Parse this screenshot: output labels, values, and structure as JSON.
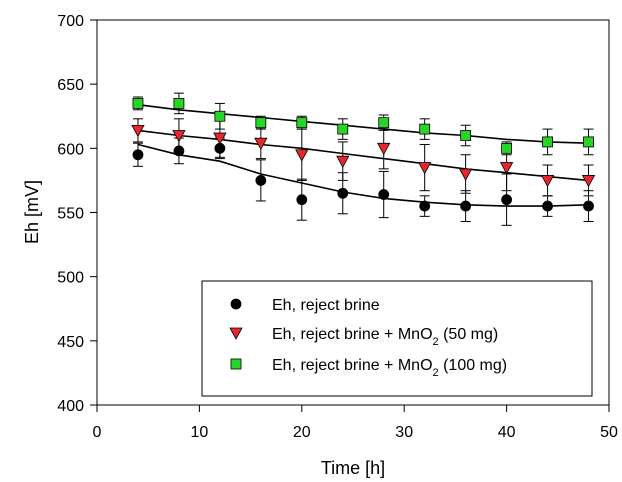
{
  "chart_data": {
    "type": "scatter",
    "xlabel": "Time [h]",
    "ylabel": "Eh [mV]",
    "xlim": [
      0,
      50
    ],
    "ylim": [
      400,
      700
    ],
    "x_ticks": [
      "0",
      "10",
      "20",
      "30",
      "40",
      "50"
    ],
    "y_ticks": [
      "400",
      "450",
      "500",
      "550",
      "600",
      "650",
      "700"
    ],
    "grid": false,
    "legend_position": "bottom-right",
    "series": [
      {
        "name": "Eh, reject brine",
        "marker": "circle",
        "color": "#000000",
        "points": [
          {
            "x": 4,
            "y": 595,
            "err": 9
          },
          {
            "x": 8,
            "y": 598,
            "err": 10
          },
          {
            "x": 12,
            "y": 600,
            "err": 8
          },
          {
            "x": 16,
            "y": 575,
            "err": 16
          },
          {
            "x": 20,
            "y": 560,
            "err": 16
          },
          {
            "x": 24,
            "y": 565,
            "err": 16
          },
          {
            "x": 28,
            "y": 564,
            "err": 18
          },
          {
            "x": 32,
            "y": 555,
            "err": 8
          },
          {
            "x": 36,
            "y": 555,
            "err": 12
          },
          {
            "x": 40,
            "y": 560,
            "err": 20
          },
          {
            "x": 44,
            "y": 555,
            "err": 8
          },
          {
            "x": 48,
            "y": 555,
            "err": 12
          }
        ],
        "fit": [
          [
            4,
            603
          ],
          [
            8,
            595
          ],
          [
            12,
            590
          ],
          [
            16,
            580
          ],
          [
            20,
            573
          ],
          [
            24,
            566
          ],
          [
            28,
            561
          ],
          [
            32,
            558
          ],
          [
            36,
            556
          ],
          [
            40,
            555
          ],
          [
            44,
            555
          ],
          [
            48,
            556
          ]
        ]
      },
      {
        "name": "Eh, reject brine + MnO",
        "name_sub": "2",
        "name_suffix": " (50 mg)",
        "marker": "triangle-down",
        "color": "#e8262c",
        "points": [
          {
            "x": 4,
            "y": 614,
            "err": 9
          },
          {
            "x": 8,
            "y": 610,
            "err": 13
          },
          {
            "x": 12,
            "y": 608,
            "err": 15
          },
          {
            "x": 16,
            "y": 604,
            "err": 12
          },
          {
            "x": 20,
            "y": 595,
            "err": 20
          },
          {
            "x": 24,
            "y": 590,
            "err": 15
          },
          {
            "x": 28,
            "y": 600,
            "err": 16
          },
          {
            "x": 32,
            "y": 585,
            "err": 18
          },
          {
            "x": 36,
            "y": 580,
            "err": 15
          },
          {
            "x": 40,
            "y": 585,
            "err": 18
          },
          {
            "x": 44,
            "y": 575,
            "err": 12
          },
          {
            "x": 48,
            "y": 575,
            "err": 12
          }
        ],
        "fit": [
          [
            4,
            614
          ],
          [
            8,
            610
          ],
          [
            12,
            607
          ],
          [
            16,
            603
          ],
          [
            20,
            600
          ],
          [
            24,
            596
          ],
          [
            28,
            592
          ],
          [
            32,
            588
          ],
          [
            36,
            584
          ],
          [
            40,
            581
          ],
          [
            44,
            578
          ],
          [
            48,
            575
          ]
        ]
      },
      {
        "name": "Eh, reject brine + MnO",
        "name_sub": "2",
        "name_suffix": " (100 mg)",
        "marker": "square",
        "color": "#27d427",
        "points": [
          {
            "x": 4,
            "y": 635,
            "err": 5
          },
          {
            "x": 8,
            "y": 635,
            "err": 8
          },
          {
            "x": 12,
            "y": 625,
            "err": 10
          },
          {
            "x": 16,
            "y": 620,
            "err": 5
          },
          {
            "x": 20,
            "y": 620,
            "err": 5
          },
          {
            "x": 24,
            "y": 615,
            "err": 8
          },
          {
            "x": 28,
            "y": 620,
            "err": 6
          },
          {
            "x": 32,
            "y": 615,
            "err": 8
          },
          {
            "x": 36,
            "y": 610,
            "err": 8
          },
          {
            "x": 40,
            "y": 600,
            "err": 5
          },
          {
            "x": 44,
            "y": 605,
            "err": 10
          },
          {
            "x": 48,
            "y": 605,
            "err": 10
          }
        ],
        "fit": [
          [
            4,
            634
          ],
          [
            8,
            630
          ],
          [
            12,
            627
          ],
          [
            16,
            624
          ],
          [
            20,
            621
          ],
          [
            24,
            618
          ],
          [
            28,
            615
          ],
          [
            32,
            612
          ],
          [
            36,
            610
          ],
          [
            40,
            607
          ],
          [
            44,
            605
          ],
          [
            48,
            604
          ]
        ]
      }
    ]
  }
}
